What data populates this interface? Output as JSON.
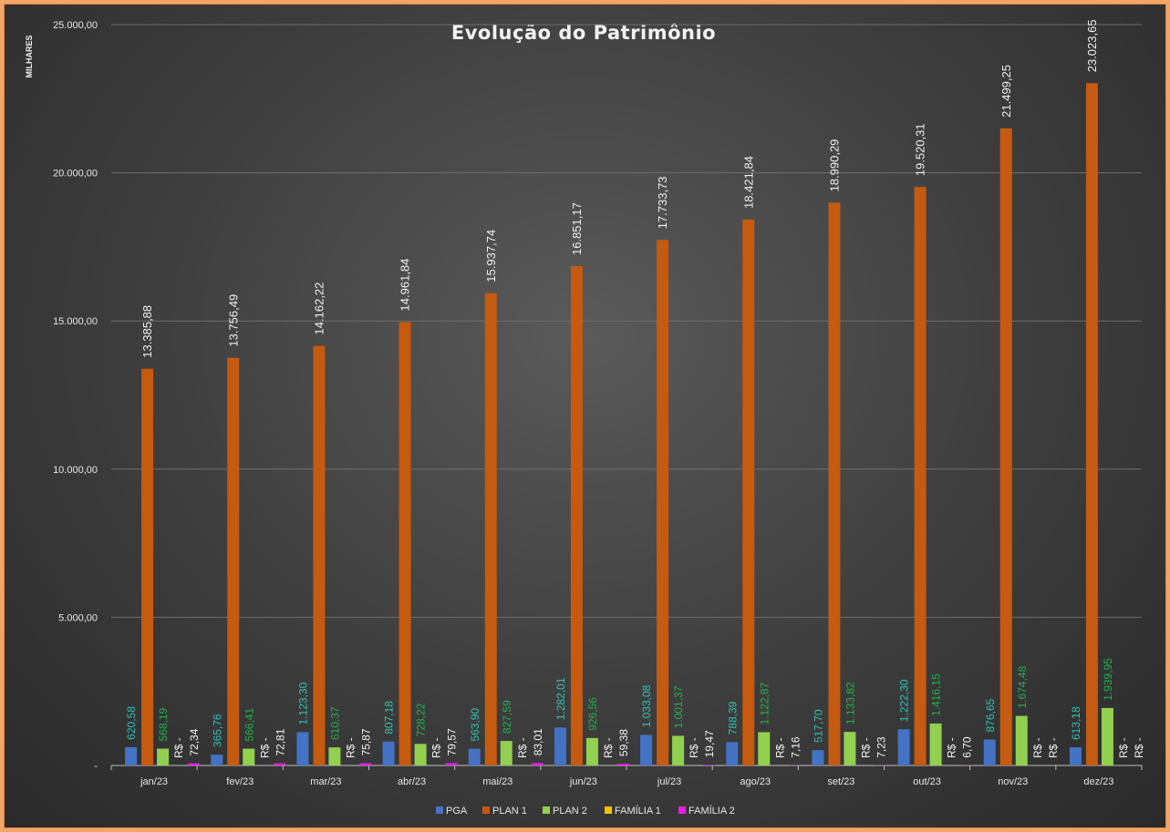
{
  "chart_data": {
    "type": "bar",
    "title": "Evolução do Patrimônio",
    "unit_label": "MILHARES",
    "ylim": [
      0,
      25000
    ],
    "y_ticks": [
      {
        "value": 0,
        "label": "-"
      },
      {
        "value": 5000,
        "label": "5.000,00"
      },
      {
        "value": 10000,
        "label": "10.000,00"
      },
      {
        "value": 15000,
        "label": "15.000,00"
      },
      {
        "value": 20000,
        "label": "20.000,00"
      },
      {
        "value": 25000,
        "label": "25.000,00"
      }
    ],
    "grid": true,
    "legend_position": "bottom",
    "categories": [
      "jan/23",
      "fev/23",
      "mar/23",
      "abr/23",
      "mai/23",
      "jun/23",
      "jul/23",
      "ago/23",
      "set/23",
      "out/23",
      "nov/23",
      "dez/23"
    ],
    "series": [
      {
        "name": "PGA",
        "color": "#4472c4",
        "label_color": "#2ec4b6",
        "values": [
          620.58,
          365.76,
          1123.3,
          807.18,
          563.9,
          1282.01,
          1033.08,
          788.39,
          517.7,
          1222.3,
          876.65,
          613.18
        ],
        "labels": [
          "620,58",
          "365,76",
          "1.123,30",
          "807,18",
          "563,90",
          "1.282,01",
          "1.033,08",
          "788,39",
          "517,70",
          "1.222,30",
          "876,65",
          "613,18"
        ]
      },
      {
        "name": "PLAN 1",
        "color": "#c55a11",
        "label_color": "#f2f2f2",
        "values": [
          13385.88,
          13756.49,
          14162.22,
          14961.84,
          15937.74,
          16851.17,
          17733.73,
          18421.84,
          18990.29,
          19520.31,
          21499.25,
          23023.65
        ],
        "labels": [
          "13.385,88",
          "13.756,49",
          "14.162,22",
          "14.961,84",
          "15.937,74",
          "16.851,17",
          "17.733,73",
          "18.421,84",
          "18.990,29",
          "19.520,31",
          "21.499,25",
          "23.023,65"
        ]
      },
      {
        "name": "PLAN 2",
        "color": "#92d050",
        "label_color": "#21b34a",
        "values": [
          568.19,
          566.41,
          610.37,
          728.22,
          827.59,
          926.56,
          1001.37,
          1122.87,
          1133.82,
          1416.15,
          1674.48,
          1939.95
        ],
        "labels": [
          "568,19",
          "566,41",
          "610,37",
          "728,22",
          "827,59",
          "926,56",
          "1.001,37",
          "1.122,87",
          "1.133,82",
          "1.416,15",
          "1.674,48",
          "1.939,95"
        ]
      },
      {
        "name": "FAMÍLIA 1",
        "color": "#ffc000",
        "label_color": "#f2f2f2",
        "values": [
          0,
          0,
          0,
          0,
          0,
          0,
          0,
          0,
          0,
          0,
          0,
          0
        ],
        "labels": [
          "R$ -",
          "R$ -",
          "R$ -",
          "R$ -",
          "R$ -",
          "R$ -",
          "R$ -",
          "R$ -",
          "R$ -",
          "R$ -",
          "R$ -",
          "R$ -"
        ]
      },
      {
        "name": "FAMÍLIA 2",
        "color": "#e61ee6",
        "label_color": "#f2f2f2",
        "values": [
          72.34,
          72.81,
          75.87,
          79.57,
          83.01,
          59.38,
          19.47,
          7.16,
          7.23,
          6.7,
          0,
          0
        ],
        "labels": [
          "72,34",
          "72,81",
          "75,87",
          "79,57",
          "83,01",
          "59,38",
          "19,47",
          "7,16",
          "7,23",
          "6,70",
          "R$ -",
          "R$ -"
        ]
      }
    ]
  }
}
